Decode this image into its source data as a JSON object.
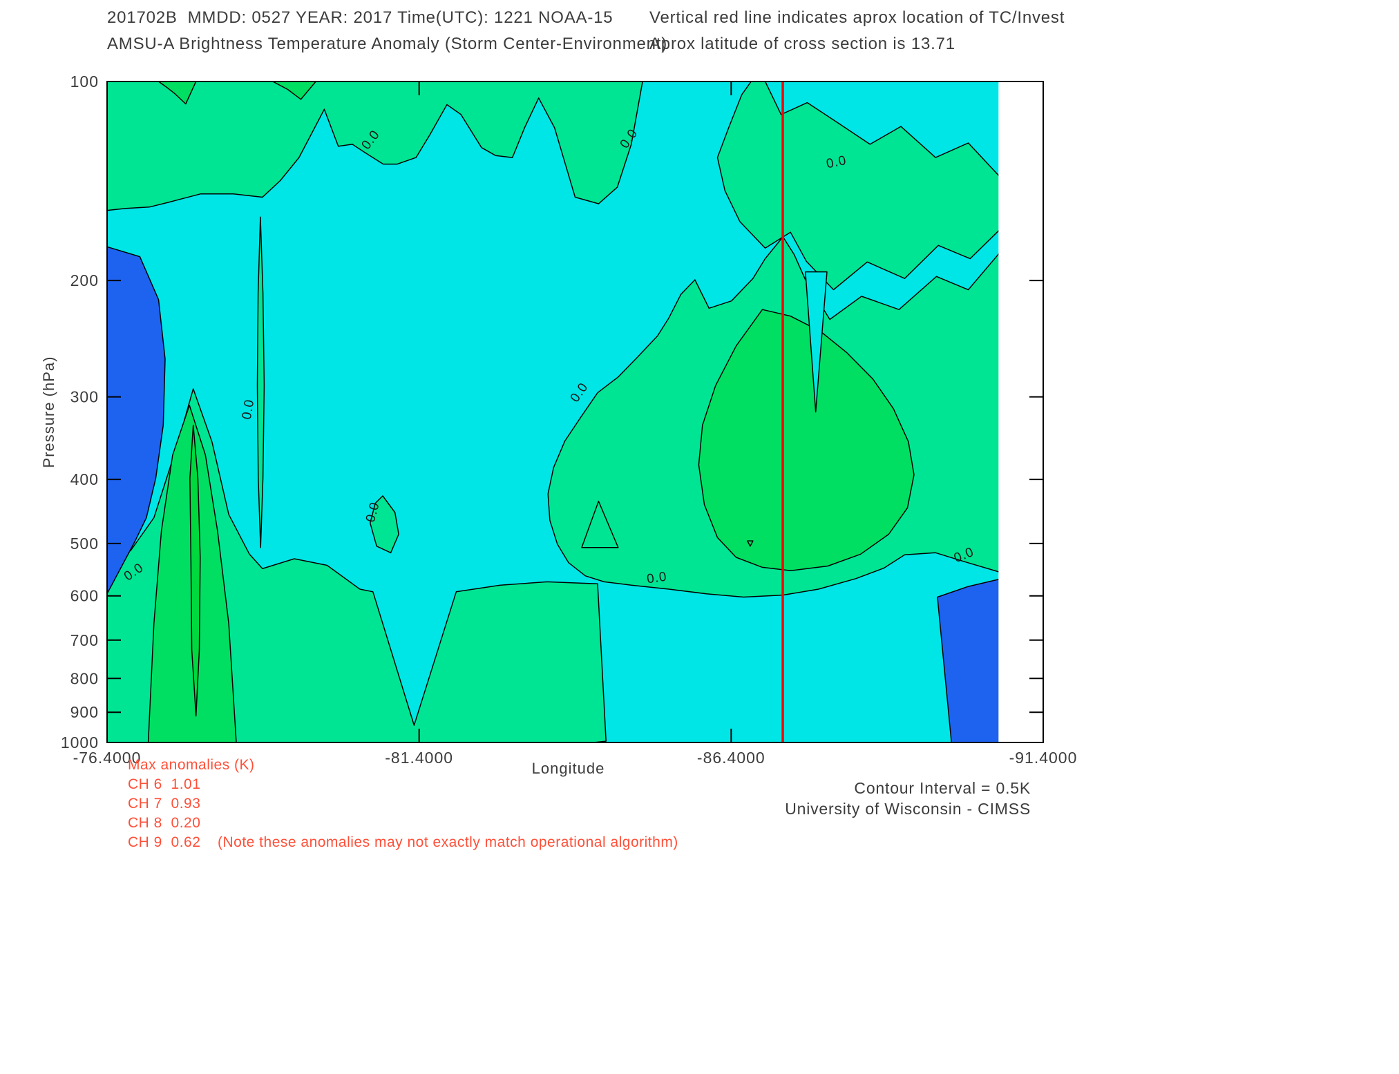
{
  "header": {
    "line1": "201702B  MMDD: 0527 YEAR: 2017 Time(UTC): 1221 NOAA-15",
    "line2": "AMSU-A Brightness Temperature Anomaly (Storm Center-Environment)",
    "right1": "Vertical red line indicates aprox location of TC/Invest",
    "right2": "Aprox latitude of cross section is 13.71"
  },
  "footer": {
    "max_title": "Max anomalies (K)",
    "channels": [
      "CH 6  1.01",
      "CH 7  0.93",
      "CH 8  0.20",
      "CH 9  0.62"
    ],
    "note": "(Note these anomalies may not exactly match operational algorithm)",
    "contour_interval": "Contour Interval = 0.5K",
    "institution": "University of Wisconsin - CIMSS"
  },
  "chart_data": {
    "type": "contour",
    "title": "AMSU-A Brightness Temperature Anomaly (Storm Center-Environment)",
    "storm_id": "201702B",
    "satellite": "NOAA-15",
    "date_mmdd": "0527",
    "year": "2017",
    "time_utc": "1221",
    "cross_section_latitude": 13.71,
    "xlabel": "Longitude",
    "ylabel": "Pressure (hPa)",
    "x_ticks": [
      "-76.4000",
      "-81.4000",
      "-86.4000",
      "-91.4000"
    ],
    "x_range": [
      -76.4,
      -91.4
    ],
    "y_ticks": [
      100,
      200,
      300,
      400,
      500,
      600,
      700,
      800,
      900,
      1000
    ],
    "y_scale": "log",
    "y_range": [
      100,
      1000
    ],
    "contour_interval_k": 0.5,
    "max_anomalies_k": {
      "CH6": 1.01,
      "CH7": 0.93,
      "CH8": 0.2,
      "CH9": 0.62
    },
    "red_line_x_frac": 0.7218,
    "data_right_frac": 0.953,
    "colors": {
      "cyan": "#00e6e6",
      "green1": "#00e593",
      "green2": "#00df62",
      "green3": "#00d93e",
      "blue": "#1e62f0",
      "red": "#ff0000"
    },
    "level_fill_map": {
      "blue": "below -0.5 K",
      "cyan": "-0.5 to 0 K",
      "green1": "0 to 0.5 K",
      "green2": "0.5 to 1.0 K",
      "green3": "above 1.0 K"
    },
    "regions": [
      {
        "name": "top-band",
        "fill": "green1",
        "points": [
          [
            0,
            0
          ],
          [
            0.572,
            0
          ],
          [
            0.56,
            0.095
          ],
          [
            0.545,
            0.16
          ],
          [
            0.525,
            0.185
          ],
          [
            0.5,
            0.175
          ],
          [
            0.478,
            0.07
          ],
          [
            0.461,
            0.025
          ],
          [
            0.446,
            0.07
          ],
          [
            0.433,
            0.115
          ],
          [
            0.415,
            0.112
          ],
          [
            0.4,
            0.1
          ],
          [
            0.378,
            0.05
          ],
          [
            0.363,
            0.035
          ],
          [
            0.345,
            0.08
          ],
          [
            0.33,
            0.115
          ],
          [
            0.31,
            0.125
          ],
          [
            0.295,
            0.125
          ],
          [
            0.276,
            0.108
          ],
          [
            0.262,
            0.095
          ],
          [
            0.247,
            0.098
          ],
          [
            0.232,
            0.042
          ],
          [
            0.218,
            0.08
          ],
          [
            0.205,
            0.115
          ],
          [
            0.185,
            0.15
          ],
          [
            0.166,
            0.175
          ],
          [
            0.135,
            0.17
          ],
          [
            0.1,
            0.17
          ],
          [
            0.065,
            0.183
          ],
          [
            0.045,
            0.19
          ],
          [
            0.02,
            0.192
          ],
          [
            0,
            0.195
          ]
        ]
      },
      {
        "name": "top-patch-a",
        "fill": "green2",
        "points": [
          [
            0.055,
            0
          ],
          [
            0.095,
            0
          ],
          [
            0.084,
            0.034
          ],
          [
            0.072,
            0.018
          ],
          [
            0.063,
            0.008
          ]
        ]
      },
      {
        "name": "top-patch-b",
        "fill": "green2",
        "points": [
          [
            0.177,
            0
          ],
          [
            0.223,
            0
          ],
          [
            0.207,
            0.027
          ],
          [
            0.193,
            0.012
          ]
        ]
      },
      {
        "name": "top-right-band",
        "fill": "green1",
        "points": [
          [
            0.652,
            0.115
          ],
          [
            0.664,
            0.07
          ],
          [
            0.678,
            0.02
          ],
          [
            0.688,
            0
          ],
          [
            0.703,
            0
          ],
          [
            0.72,
            0.05
          ],
          [
            0.748,
            0.032
          ],
          [
            0.78,
            0.062
          ],
          [
            0.815,
            0.095
          ],
          [
            0.848,
            0.068
          ],
          [
            0.885,
            0.115
          ],
          [
            0.92,
            0.093
          ],
          [
            0.953,
            0.143
          ],
          [
            0.953,
            0.225
          ],
          [
            0.922,
            0.268
          ],
          [
            0.888,
            0.248
          ],
          [
            0.852,
            0.298
          ],
          [
            0.812,
            0.273
          ],
          [
            0.776,
            0.315
          ],
          [
            0.747,
            0.272
          ],
          [
            0.73,
            0.228
          ],
          [
            0.703,
            0.252
          ],
          [
            0.676,
            0.212
          ],
          [
            0.66,
            0.165
          ]
        ]
      },
      {
        "name": "right-main",
        "fill": "green1",
        "points": [
          [
            0.722,
            0.235
          ],
          [
            0.703,
            0.268
          ],
          [
            0.69,
            0.298
          ],
          [
            0.667,
            0.332
          ],
          [
            0.643,
            0.343
          ],
          [
            0.628,
            0.3
          ],
          [
            0.613,
            0.322
          ],
          [
            0.6,
            0.358
          ],
          [
            0.588,
            0.385
          ],
          [
            0.566,
            0.418
          ],
          [
            0.546,
            0.447
          ],
          [
            0.524,
            0.471
          ],
          [
            0.506,
            0.508
          ],
          [
            0.489,
            0.544
          ],
          [
            0.477,
            0.584
          ],
          [
            0.471,
            0.624
          ],
          [
            0.473,
            0.664
          ],
          [
            0.481,
            0.7
          ],
          [
            0.493,
            0.728
          ],
          [
            0.511,
            0.748
          ],
          [
            0.531,
            0.757
          ],
          [
            0.56,
            0.762
          ],
          [
            0.6,
            0.768
          ],
          [
            0.64,
            0.775
          ],
          [
            0.68,
            0.78
          ],
          [
            0.722,
            0.777
          ],
          [
            0.76,
            0.768
          ],
          [
            0.8,
            0.752
          ],
          [
            0.83,
            0.736
          ],
          [
            0.852,
            0.716
          ],
          [
            0.885,
            0.713
          ],
          [
            0.917,
            0.727
          ],
          [
            0.953,
            0.742
          ],
          [
            0.953,
            0.26
          ],
          [
            0.92,
            0.315
          ],
          [
            0.886,
            0.295
          ],
          [
            0.846,
            0.345
          ],
          [
            0.806,
            0.325
          ],
          [
            0.772,
            0.36
          ],
          [
            0.746,
            0.3
          ],
          [
            0.734,
            0.262
          ]
        ]
      },
      {
        "name": "right-core",
        "fill": "green2",
        "points": [
          [
            0.7,
            0.345
          ],
          [
            0.672,
            0.4
          ],
          [
            0.65,
            0.46
          ],
          [
            0.636,
            0.52
          ],
          [
            0.632,
            0.58
          ],
          [
            0.638,
            0.64
          ],
          [
            0.652,
            0.69
          ],
          [
            0.672,
            0.72
          ],
          [
            0.7,
            0.735
          ],
          [
            0.73,
            0.74
          ],
          [
            0.77,
            0.733
          ],
          [
            0.805,
            0.715
          ],
          [
            0.835,
            0.685
          ],
          [
            0.855,
            0.645
          ],
          [
            0.862,
            0.595
          ],
          [
            0.856,
            0.545
          ],
          [
            0.84,
            0.495
          ],
          [
            0.818,
            0.45
          ],
          [
            0.79,
            0.41
          ],
          [
            0.762,
            0.378
          ],
          [
            0.73,
            0.355
          ]
        ]
      },
      {
        "name": "right-core-notch",
        "fill": "cyan",
        "points": [
          [
            0.746,
            0.288
          ],
          [
            0.757,
            0.5
          ],
          [
            0.769,
            0.288
          ]
        ]
      },
      {
        "name": "bottom-left-band",
        "fill": "green1",
        "points": [
          [
            0,
            0.703
          ],
          [
            0.025,
            0.71
          ],
          [
            0.05,
            0.66
          ],
          [
            0.075,
            0.55
          ],
          [
            0.092,
            0.465
          ],
          [
            0.112,
            0.545
          ],
          [
            0.13,
            0.655
          ],
          [
            0.152,
            0.715
          ],
          [
            0.166,
            0.737
          ],
          [
            0.2,
            0.722
          ],
          [
            0.235,
            0.732
          ],
          [
            0.27,
            0.768
          ],
          [
            0.284,
            0.772
          ],
          [
            0.328,
            0.974
          ],
          [
            0.373,
            0.772
          ],
          [
            0.42,
            0.762
          ],
          [
            0.47,
            0.757
          ],
          [
            0.524,
            0.76
          ],
          [
            0.533,
            0.998
          ],
          [
            0.52,
            1
          ],
          [
            0,
            1
          ]
        ]
      },
      {
        "name": "bottom-left-mid",
        "fill": "green2",
        "points": [
          [
            0.044,
            1
          ],
          [
            0.05,
            0.82
          ],
          [
            0.058,
            0.68
          ],
          [
            0.07,
            0.565
          ],
          [
            0.088,
            0.49
          ],
          [
            0.105,
            0.565
          ],
          [
            0.118,
            0.68
          ],
          [
            0.13,
            0.82
          ],
          [
            0.138,
            1
          ]
        ]
      },
      {
        "name": "bottom-left-core",
        "fill": "green3",
        "points": [
          [
            0.092,
            0.52
          ],
          [
            0.097,
            0.6
          ],
          [
            0.0995,
            0.72
          ],
          [
            0.0985,
            0.86
          ],
          [
            0.095,
            0.96
          ],
          [
            0.0905,
            0.86
          ],
          [
            0.0895,
            0.72
          ],
          [
            0.0885,
            0.6
          ]
        ]
      },
      {
        "name": "sliver",
        "fill": "green1",
        "points": [
          [
            0.1638,
            0.205
          ],
          [
            0.1665,
            0.32
          ],
          [
            0.1678,
            0.46
          ],
          [
            0.1665,
            0.6
          ],
          [
            0.164,
            0.705
          ],
          [
            0.1615,
            0.6
          ],
          [
            0.1605,
            0.46
          ],
          [
            0.1613,
            0.32
          ]
        ]
      },
      {
        "name": "small-blob",
        "fill": "green1",
        "points": [
          [
            0.2945,
            0.627
          ],
          [
            0.3075,
            0.652
          ],
          [
            0.3115,
            0.685
          ],
          [
            0.303,
            0.713
          ],
          [
            0.288,
            0.703
          ],
          [
            0.281,
            0.668
          ],
          [
            0.2865,
            0.638
          ]
        ]
      },
      {
        "name": "small-triangle",
        "fill": "green1",
        "points": [
          [
            0.525,
            0.635
          ],
          [
            0.546,
            0.705
          ],
          [
            0.507,
            0.705
          ]
        ]
      },
      {
        "name": "micro-contour",
        "fill": "none",
        "points": [
          [
            0.684,
            0.695
          ],
          [
            0.69,
            0.695
          ],
          [
            0.687,
            0.703
          ]
        ]
      },
      {
        "name": "blue-left",
        "fill": "blue",
        "points": [
          [
            0,
            0.25
          ],
          [
            0.035,
            0.265
          ],
          [
            0.055,
            0.33
          ],
          [
            0.062,
            0.42
          ],
          [
            0.06,
            0.52
          ],
          [
            0.052,
            0.6
          ],
          [
            0.042,
            0.66
          ],
          [
            0.03,
            0.695
          ],
          [
            0,
            0.775
          ]
        ]
      },
      {
        "name": "blue-right",
        "fill": "blue",
        "points": [
          [
            0.887,
            0.78
          ],
          [
            0.92,
            0.764
          ],
          [
            0.953,
            0.753
          ],
          [
            0.953,
            1
          ],
          [
            0.902,
            1
          ]
        ]
      }
    ],
    "contour_labels": [
      {
        "text": "0.0",
        "x": 0.285,
        "y": 0.092,
        "rot": -52
      },
      {
        "text": "0.0",
        "x": 0.561,
        "y": 0.09,
        "rot": -55
      },
      {
        "text": "0.0",
        "x": 0.78,
        "y": 0.128,
        "rot": -12
      },
      {
        "text": "0.0",
        "x": 0.155,
        "y": 0.497,
        "rot": -80
      },
      {
        "text": "0.0",
        "x": 0.508,
        "y": 0.474,
        "rot": -55
      },
      {
        "text": "0.0",
        "x": 0.288,
        "y": 0.653,
        "rot": -75
      },
      {
        "text": "0.0",
        "x": 0.031,
        "y": 0.747,
        "rot": -35
      },
      {
        "text": "0.0",
        "x": 0.588,
        "y": 0.757,
        "rot": -8
      },
      {
        "text": "0.0",
        "x": 0.917,
        "y": 0.722,
        "rot": -22
      }
    ]
  }
}
